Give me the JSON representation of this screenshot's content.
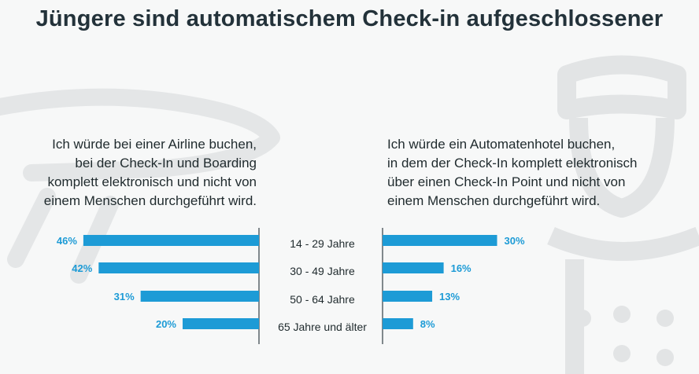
{
  "title": "Jüngere sind automatischem Check-in aufgeschlossener",
  "captions": {
    "left": [
      "Ich würde bei einer Airline buchen,",
      "bei der Check-In und Boarding",
      "komplett elektronisch und nicht von",
      "einem Menschen durchgeführt wird."
    ],
    "right": [
      "Ich würde ein Automatenhotel buchen,",
      "in dem der Check-In komplett elektronisch",
      "über einen Check-In Point und nicht von",
      "einem Menschen durchgeführt wird."
    ]
  },
  "colors": {
    "bar": "#1d9bd6",
    "axis": "#333f44",
    "background": "#f7f8f8",
    "watermark": "#e4e6e7"
  },
  "chart_data": {
    "type": "bar",
    "orientation": "horizontal-butterfly",
    "title": "Jüngere sind automatischem Check-in aufgeschlossener",
    "categories": [
      "14 - 29 Jahre",
      "30 - 49 Jahre",
      "50 - 64 Jahre",
      "65 Jahre und älter"
    ],
    "series": [
      {
        "name": "Ich würde bei einer Airline buchen, bei der Check-In und Boarding komplett elektronisch und nicht von einem Menschen durchgeführt wird.",
        "side": "left",
        "values": [
          46,
          42,
          31,
          20
        ]
      },
      {
        "name": "Ich würde ein Automatenhotel buchen, in dem der Check-In komplett elektronisch über einen Check-In Point und nicht von einem Menschen durchgeführt wird.",
        "side": "right",
        "values": [
          30,
          16,
          13,
          8
        ]
      }
    ],
    "value_suffix": "%",
    "xlim": [
      0,
      50
    ]
  }
}
